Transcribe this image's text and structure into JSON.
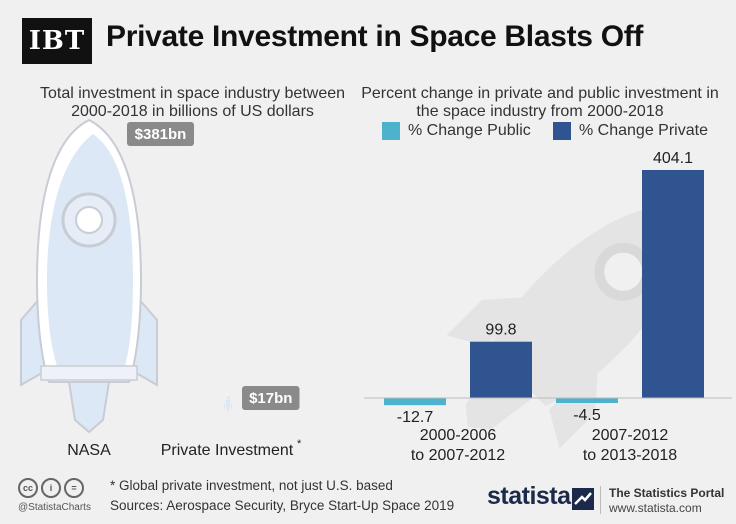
{
  "header": {
    "logo_text": "IBT",
    "title": "Private Investment in Space Blasts Off"
  },
  "left_panel": {
    "subtitle": "Total investment in space industry between 2000-2018 in billions of US dollars"
  },
  "right_panel": {
    "subtitle": "Percent change in private and public investment in the space industry from 2000-2018"
  },
  "legend": [
    {
      "label": "% Change Public",
      "color": "#4db3cc"
    },
    {
      "label": "% Change Private",
      "color": "#2f5490"
    }
  ],
  "chart_data": [
    {
      "type": "bar",
      "categories": [
        "NASA",
        "Private Investment"
      ],
      "category_suffix": [
        "",
        "*"
      ],
      "values": [
        381,
        17
      ],
      "value_labels": [
        "$381bn",
        "$17bn"
      ],
      "unit": "billion US dollars",
      "ylim": [
        0,
        381
      ],
      "colors": {
        "rocket_body": "#ffffff",
        "rocket_fill": "#dce8f5",
        "outline": "#c8ccd4",
        "badge": "#8a8a8a"
      }
    },
    {
      "type": "bar",
      "categories": [
        "2000-2006\nto 2007-2012",
        "2007-2012\nto 2013-2018"
      ],
      "series": [
        {
          "name": "% Change Public",
          "values": [
            -12.7,
            -4.5
          ],
          "value_labels": [
            "-12.7",
            "-4.5"
          ],
          "color": "#4db3cc"
        },
        {
          "name": "% Change Private",
          "values": [
            99.8,
            404.1
          ],
          "value_labels": [
            "99.8",
            "404.1"
          ],
          "color": "#2f5490"
        }
      ],
      "ylim": [
        -15,
        404.1
      ],
      "grid": false
    }
  ],
  "footer": {
    "note": "* Global private investment, not just U.S. based",
    "sources": "Sources: Aerospace Security, Bryce Start-Up Space 2019",
    "handle": "@StatistaCharts",
    "cc_icons": [
      "cc",
      "i",
      "="
    ],
    "brand": "statista",
    "portal_title": "The Statistics Portal",
    "portal_url": "www.statista.com"
  }
}
